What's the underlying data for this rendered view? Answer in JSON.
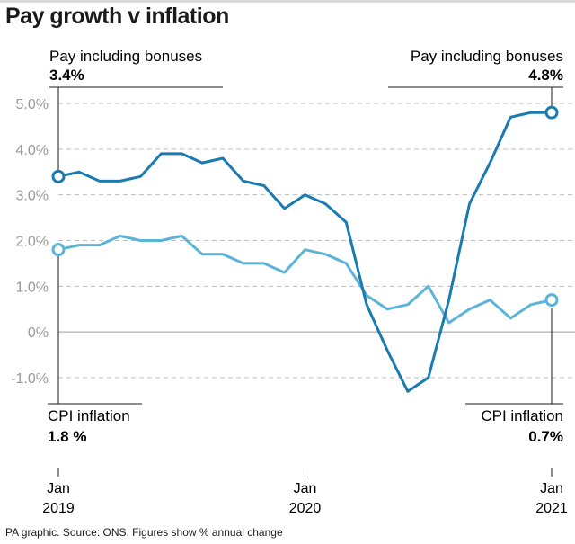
{
  "title": "Pay growth v inflation",
  "footer": "PA graphic. Source: ONS. Figures show % annual change",
  "annotations": {
    "pay_start_label": "Pay including bonuses",
    "pay_start_value": "3.4%",
    "pay_end_label": "Pay including bonuses",
    "pay_end_value": "4.8%",
    "cpi_start_label": "CPI inflation",
    "cpi_start_value": "1.8 %",
    "cpi_end_label": "CPI inflation",
    "cpi_end_value": "0.7%"
  },
  "colors": {
    "pay": "#1a7bb0",
    "cpi": "#5cb4d9",
    "axis_text": "#9a9a9a",
    "grid": "#bdbdbd"
  },
  "chart_data": {
    "type": "line",
    "x": [
      "2019-01",
      "2019-02",
      "2019-03",
      "2019-04",
      "2019-05",
      "2019-06",
      "2019-07",
      "2019-08",
      "2019-09",
      "2019-10",
      "2019-11",
      "2019-12",
      "2020-01",
      "2020-02",
      "2020-03",
      "2020-04",
      "2020-05",
      "2020-06",
      "2020-07",
      "2020-08",
      "2020-09",
      "2020-10",
      "2020-11",
      "2020-12",
      "2021-01"
    ],
    "series": [
      {
        "name": "Pay including bonuses",
        "values": [
          3.4,
          3.5,
          3.3,
          3.3,
          3.4,
          3.9,
          3.9,
          3.7,
          3.8,
          3.3,
          3.2,
          2.7,
          3.0,
          2.8,
          2.4,
          0.6,
          -0.4,
          -1.3,
          -1.0,
          0.7,
          2.8,
          3.7,
          4.7,
          4.8,
          4.8
        ]
      },
      {
        "name": "CPI inflation",
        "values": [
          1.8,
          1.9,
          1.9,
          2.1,
          2.0,
          2.0,
          2.1,
          1.7,
          1.7,
          1.5,
          1.5,
          1.3,
          1.8,
          1.7,
          1.5,
          0.8,
          0.5,
          0.6,
          1.0,
          0.2,
          0.5,
          0.7,
          0.3,
          0.6,
          0.7
        ]
      }
    ],
    "y_ticks": [
      "5.0%",
      "4.0%",
      "3.0%",
      "2.0%",
      "1.0%",
      "0%",
      "-1.0%"
    ],
    "y_tick_values": [
      5,
      4,
      3,
      2,
      1,
      0,
      -1
    ],
    "x_ticks": [
      {
        "x": "2019-01",
        "month": "Jan",
        "year": "2019"
      },
      {
        "x": "2020-01",
        "month": "Jan",
        "year": "2020"
      },
      {
        "x": "2021-01",
        "month": "Jan",
        "year": "2021"
      }
    ],
    "ylim": [
      -1.0,
      5.0
    ],
    "grid": true
  }
}
